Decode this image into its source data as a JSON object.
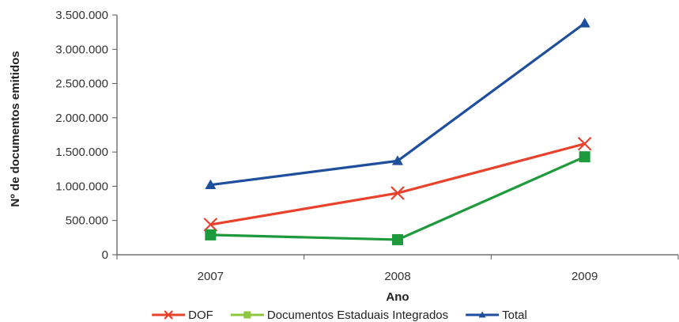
{
  "chart_data": {
    "type": "line",
    "categories": [
      "2007",
      "2008",
      "2009"
    ],
    "xlabel": "Ano",
    "ylabel": "Nº de documentos emitidos",
    "ylim": [
      0,
      3500000
    ],
    "yticks": [
      0,
      500000,
      1000000,
      1500000,
      2000000,
      2500000,
      3000000,
      3500000
    ],
    "ytick_labels": [
      "0",
      "500.000",
      "1.000.000",
      "1.500.000",
      "2.000.000",
      "2.500.000",
      "3.000.000",
      "3.500.000"
    ],
    "grid": false,
    "legend_position": "bottom",
    "series": [
      {
        "name": "DOF",
        "values": [
          440000,
          900000,
          1620000
        ],
        "color": "#e8412c",
        "marker": "x"
      },
      {
        "name": "Documentos Estaduais Integrados",
        "values": [
          290000,
          220000,
          1430000
        ],
        "color": "#1e9a3c",
        "legend_color": "#8dc63f",
        "marker": "square"
      },
      {
        "name": "Total",
        "values": [
          1020000,
          1370000,
          3380000
        ],
        "color": "#1f4e9c",
        "marker": "triangle"
      }
    ]
  }
}
